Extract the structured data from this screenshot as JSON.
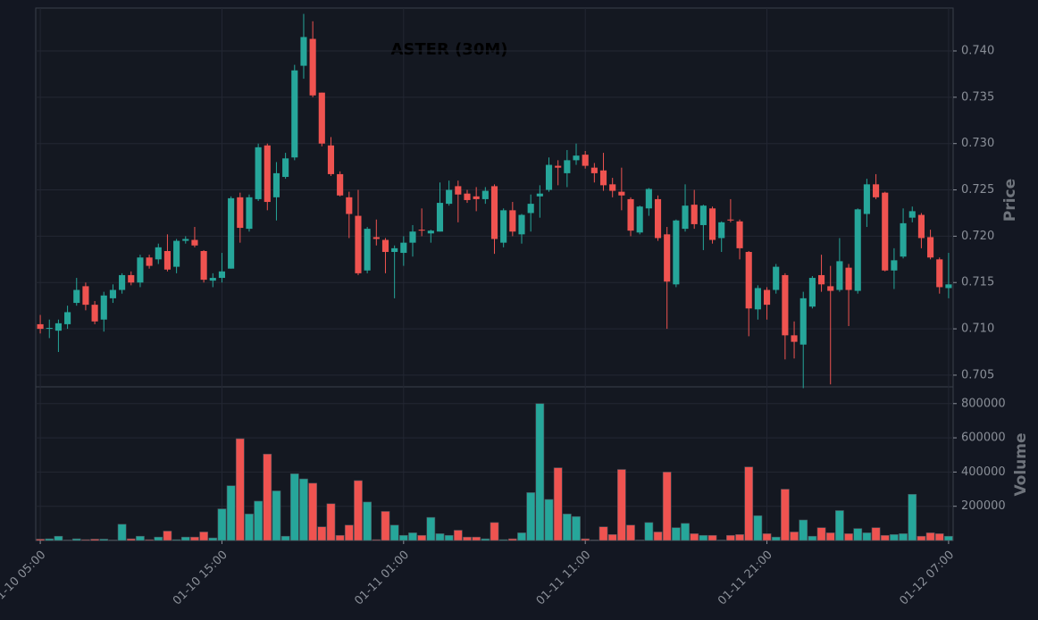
{
  "chart_data": {
    "type": "candlestick",
    "title": "ASTER (30M)",
    "up_color": "#26a69a",
    "down_color": "#ef5350",
    "grid": true,
    "xlim": [
      -0.5,
      100.5
    ],
    "xticks": [
      {
        "value": 0,
        "label": "01-10 05:00"
      },
      {
        "value": 20,
        "label": "01-10 15:00"
      },
      {
        "value": 40,
        "label": "01-11 01:00"
      },
      {
        "value": 60,
        "label": "01-11 11:00"
      },
      {
        "value": 80,
        "label": "01-11 21:00"
      },
      {
        "value": 100,
        "label": "01-12 07:00"
      }
    ],
    "ylabel": "Price",
    "ylim": [
      0.70374,
      0.74463
    ],
    "yticks": [
      0.705,
      {
        "value": 0.71,
        "label": "0.710"
      },
      0.715,
      {
        "value": 0.72,
        "label": "0.720"
      },
      0.725,
      {
        "value": 0.73,
        "label": "0.730"
      },
      0.735,
      {
        "value": 0.74,
        "label": "0.740"
      }
    ],
    "open": [
      0.7105,
      0.71,
      0.7098,
      0.7105,
      0.7128,
      0.7146,
      0.7126,
      0.711,
      0.7133,
      0.7142,
      0.7158,
      0.715,
      0.7177,
      0.7175,
      0.7184,
      0.7167,
      0.7195,
      0.7196,
      0.7184,
      0.7152,
      0.7155,
      0.7165,
      0.7242,
      0.7208,
      0.724,
      0.7298,
      0.7242,
      0.7264,
      0.7285,
      0.7384,
      0.7413,
      0.7355,
      0.7298,
      0.7267,
      0.7242,
      0.7222,
      0.7163,
      0.7199,
      0.7196,
      0.7183,
      0.7182,
      0.7193,
      0.7207,
      0.7203,
      0.7205,
      0.7235,
      0.7254,
      0.7246,
      0.7243,
      0.724,
      0.7254,
      0.7193,
      0.7228,
      0.7202,
      0.7225,
      0.7243,
      0.725,
      0.7276,
      0.7268,
      0.7282,
      0.7288,
      0.7274,
      0.7271,
      0.7256,
      0.7248,
      0.724,
      0.7204,
      0.723,
      0.724,
      0.7202,
      0.7148,
      0.7208,
      0.7234,
      0.7212,
      0.723,
      0.7198,
      0.7218,
      0.7216,
      0.7183,
      0.7121,
      0.7142,
      0.7142,
      0.7158,
      0.7093,
      0.7083,
      0.7124,
      0.7158,
      0.7146,
      0.7142,
      0.7166,
      0.7141,
      0.7224,
      0.7256,
      0.7247,
      0.7163,
      0.7178,
      0.722,
      0.7223,
      0.7199,
      0.7175,
      0.7144
    ],
    "high": [
      0.7115,
      0.711,
      0.711,
      0.7125,
      0.7155,
      0.715,
      0.713,
      0.714,
      0.7148,
      0.716,
      0.7162,
      0.718,
      0.718,
      0.7192,
      0.7202,
      0.7197,
      0.72,
      0.721,
      0.7185,
      0.716,
      0.7182,
      0.7243,
      0.7247,
      0.7245,
      0.73,
      0.73,
      0.728,
      0.729,
      0.7385,
      0.744,
      0.7432,
      0.7355,
      0.7307,
      0.727,
      0.7248,
      0.725,
      0.721,
      0.7218,
      0.7198,
      0.719,
      0.72,
      0.7212,
      0.723,
      0.7207,
      0.7258,
      0.726,
      0.726,
      0.725,
      0.7253,
      0.7253,
      0.7256,
      0.723,
      0.7237,
      0.7224,
      0.7245,
      0.7255,
      0.7285,
      0.7282,
      0.7293,
      0.73,
      0.7292,
      0.7279,
      0.729,
      0.7263,
      0.7274,
      0.7242,
      0.7233,
      0.7252,
      0.7244,
      0.721,
      0.7218,
      0.7256,
      0.725,
      0.7234,
      0.7232,
      0.7216,
      0.724,
      0.7218,
      0.7184,
      0.7147,
      0.7145,
      0.717,
      0.716,
      0.7108,
      0.714,
      0.7157,
      0.718,
      0.7168,
      0.7198,
      0.717,
      0.723,
      0.7262,
      0.7267,
      0.7248,
      0.7187,
      0.723,
      0.7232,
      0.7225,
      0.7207,
      0.7177,
      0.7182
    ],
    "low": [
      0.7095,
      0.709,
      0.7075,
      0.71,
      0.7125,
      0.712,
      0.7105,
      0.7097,
      0.7128,
      0.7138,
      0.7147,
      0.7145,
      0.7165,
      0.717,
      0.7162,
      0.716,
      0.7192,
      0.7188,
      0.715,
      0.7145,
      0.715,
      0.7165,
      0.7193,
      0.7205,
      0.7238,
      0.7228,
      0.7217,
      0.7262,
      0.7282,
      0.737,
      0.735,
      0.7297,
      0.7265,
      0.7243,
      0.7198,
      0.7158,
      0.716,
      0.719,
      0.716,
      0.7133,
      0.7168,
      0.7178,
      0.72,
      0.7193,
      0.7205,
      0.7233,
      0.7215,
      0.7236,
      0.7227,
      0.7235,
      0.7181,
      0.7188,
      0.72,
      0.7192,
      0.7205,
      0.722,
      0.7248,
      0.7255,
      0.7253,
      0.7277,
      0.7273,
      0.7258,
      0.7249,
      0.7242,
      0.7228,
      0.72,
      0.7202,
      0.7222,
      0.7195,
      0.71,
      0.7145,
      0.7205,
      0.7208,
      0.7185,
      0.7192,
      0.7183,
      0.7215,
      0.7175,
      0.7092,
      0.711,
      0.711,
      0.7138,
      0.7067,
      0.7068,
      0.7036,
      0.7122,
      0.714,
      0.704,
      0.714,
      0.7103,
      0.7138,
      0.721,
      0.724,
      0.7162,
      0.7143,
      0.7176,
      0.7215,
      0.7187,
      0.7175,
      0.7138,
      0.7133
    ],
    "close": [
      0.71,
      0.7101,
      0.7106,
      0.7118,
      0.7142,
      0.7126,
      0.7108,
      0.7136,
      0.7142,
      0.7158,
      0.715,
      0.7177,
      0.7168,
      0.7188,
      0.7164,
      0.7195,
      0.7197,
      0.719,
      0.7153,
      0.7155,
      0.7162,
      0.7241,
      0.7209,
      0.7242,
      0.7296,
      0.7237,
      0.7268,
      0.7284,
      0.7379,
      0.7415,
      0.7352,
      0.73,
      0.7267,
      0.7244,
      0.7224,
      0.716,
      0.7208,
      0.7197,
      0.7183,
      0.7187,
      0.7193,
      0.7205,
      0.7206,
      0.7206,
      0.7236,
      0.725,
      0.7245,
      0.7239,
      0.724,
      0.7249,
      0.7197,
      0.7228,
      0.7205,
      0.7223,
      0.7235,
      0.7246,
      0.7277,
      0.7274,
      0.7282,
      0.7287,
      0.7276,
      0.7268,
      0.7255,
      0.7249,
      0.7244,
      0.7206,
      0.7232,
      0.7251,
      0.7198,
      0.7151,
      0.7217,
      0.7233,
      0.7213,
      0.7233,
      0.7196,
      0.7215,
      0.7217,
      0.7187,
      0.7122,
      0.7144,
      0.7126,
      0.7167,
      0.7093,
      0.7086,
      0.7133,
      0.7155,
      0.7148,
      0.7141,
      0.7173,
      0.7142,
      0.7229,
      0.7256,
      0.7242,
      0.7163,
      0.7174,
      0.7214,
      0.7227,
      0.7198,
      0.7177,
      0.7145,
      0.7148
    ],
    "volume": {
      "ylabel": "Volume",
      "ylim": [
        0,
        898000
      ],
      "yticks": [
        200000,
        400000,
        600000,
        800000
      ],
      "values": [
        8000,
        10000,
        25000,
        3000,
        10000,
        5000,
        8000,
        8000,
        3000,
        95000,
        10000,
        25000,
        5000,
        20000,
        55000,
        5000,
        20000,
        20000,
        50000,
        15000,
        185000,
        320000,
        595000,
        155000,
        230000,
        505000,
        290000,
        25000,
        390000,
        360000,
        335000,
        80000,
        215000,
        30000,
        90000,
        350000,
        225000,
        5000,
        170000,
        90000,
        30000,
        45000,
        30000,
        135000,
        40000,
        30000,
        60000,
        20000,
        20000,
        10000,
        105000,
        5000,
        10000,
        45000,
        280000,
        800000,
        240000,
        425000,
        155000,
        140000,
        10000,
        3000,
        80000,
        35000,
        415000,
        90000,
        3000,
        105000,
        50000,
        400000,
        75000,
        100000,
        40000,
        30000,
        30000,
        3000,
        30000,
        35000,
        430000,
        145000,
        40000,
        20000,
        300000,
        50000,
        120000,
        25000,
        75000,
        45000,
        175000,
        40000,
        70000,
        45000,
        75000,
        30000,
        35000,
        40000,
        270000,
        25000,
        45000,
        40000,
        25000
      ]
    }
  }
}
